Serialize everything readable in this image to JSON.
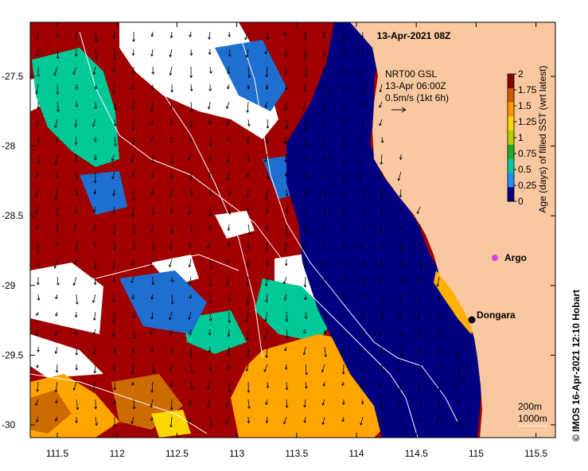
{
  "header": {
    "date_label": "13-Apr-2021 08Z"
  },
  "current_legend": {
    "line1": "NRT00 GSL",
    "line2": "13-Apr 06:00Z",
    "line3": "0.5m/s (1kt 6h)"
  },
  "colorbar": {
    "label": "Age (days) of filled SST (wrt latest)",
    "ticks": [
      "2",
      "1.75",
      "1.5",
      "1.25",
      "1",
      "0.75",
      "0.5",
      "0.25",
      "0"
    ],
    "colors": [
      "#8b0000",
      "#cd5c00",
      "#ff9900",
      "#ffd700",
      "#b0d000",
      "#22aa22",
      "#00c8a0",
      "#1e90ff",
      "#000080"
    ]
  },
  "axes": {
    "x_ticks": [
      "111.5",
      "112",
      "112.5",
      "113",
      "113.5",
      "114",
      "114.5",
      "115",
      "115.5"
    ],
    "y_ticks": [
      "-27.5",
      "-28",
      "-28.5",
      "-29",
      "-29.5",
      "-30"
    ]
  },
  "places": {
    "argo": "Argo",
    "dongara": "Dongara"
  },
  "contours_legend": {
    "line1": "200m",
    "line2": "1000m"
  },
  "credit": "© IMOS 16-Apr-2021 12:10 Hobart",
  "colors": {
    "land": "#f9c8a0",
    "near_shore": "#000080",
    "old_fill": "#a00000",
    "argo_marker": "#e040e0"
  }
}
